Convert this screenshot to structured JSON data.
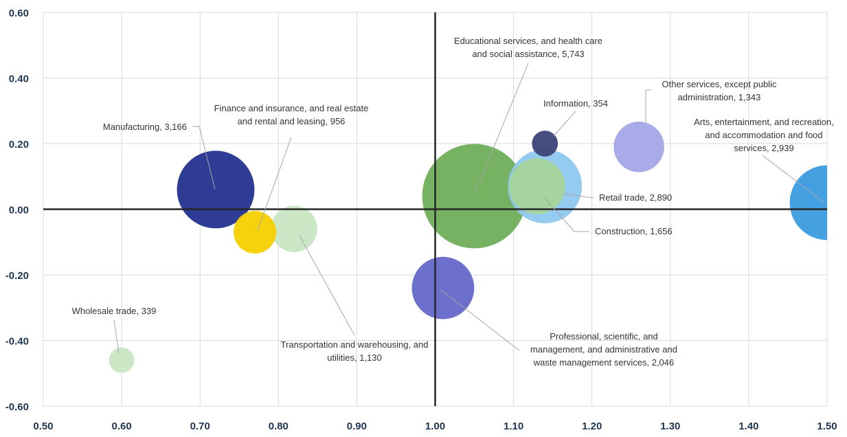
{
  "chart_data": {
    "type": "bubble",
    "title": "",
    "xlabel": "",
    "ylabel": "",
    "xlim": [
      0.5,
      1.5
    ],
    "ylim": [
      -0.6,
      0.6
    ],
    "x_ticks": [
      "0.50",
      "0.60",
      "0.70",
      "0.80",
      "0.90",
      "1.00",
      "1.10",
      "1.20",
      "1.30",
      "1.40",
      "1.50"
    ],
    "y_ticks": [
      "0.60",
      "0.40",
      "0.20",
      "0.00",
      "-0.20",
      "-0.40",
      "-0.60"
    ],
    "reference_lines": {
      "x": 1.0,
      "y": 0.0
    },
    "grid": true,
    "bubbles": [
      {
        "name": "Educational services, and health care and social assistance",
        "size": 5743,
        "x": 1.05,
        "y": 0.04,
        "color": "#70ad5a",
        "label_lines": [
          "Educational services, and health care",
          "and social assistance, 5,743"
        ]
      },
      {
        "name": "Manufacturing",
        "size": 3166,
        "x": 0.72,
        "y": 0.06,
        "color": "#24318f",
        "label_lines": [
          "Manufacturing, 3,166"
        ]
      },
      {
        "name": "Arts, entertainment, and recreation, and accommodation and food services",
        "size": 2939,
        "x": 1.5,
        "y": 0.02,
        "color": "#3b9be0",
        "label_lines": [
          "Arts, entertainment, and recreation,",
          "and accommodation and food",
          "services, 2,939"
        ]
      },
      {
        "name": "Retail trade",
        "size": 2890,
        "x": 1.14,
        "y": 0.07,
        "color": "#8ec8f0",
        "label_lines": [
          "Retail trade, 2,890"
        ]
      },
      {
        "name": "Professional, scientific, and management, and administrative and waste management services",
        "size": 2046,
        "x": 1.01,
        "y": -0.24,
        "color": "#6467c8",
        "label_lines": [
          "Professional, scientific, and",
          "management, and administrative and",
          "waste management services, 2,046"
        ]
      },
      {
        "name": "Construction",
        "size": 1656,
        "x": 1.13,
        "y": 0.07,
        "color": "#a6d49a",
        "label_lines": [
          "Construction, 1,656"
        ]
      },
      {
        "name": "Other services, except public administration",
        "size": 1343,
        "x": 1.26,
        "y": 0.19,
        "color": "#a3a7e6",
        "label_lines": [
          "Other services, except public",
          "administration, 1,343"
        ]
      },
      {
        "name": "Transportation and warehousing, and utilities",
        "size": 1130,
        "x": 0.82,
        "y": -0.06,
        "color": "#c8e6c2",
        "label_lines": [
          "Transportation and warehousing, and",
          "utilities, 1,130"
        ]
      },
      {
        "name": "Finance and insurance, and real estate and rental and leasing",
        "size": 956,
        "x": 0.77,
        "y": -0.07,
        "color": "#f5d000",
        "label_lines": [
          "Finance and insurance, and real estate",
          "and rental and leasing, 956"
        ]
      },
      {
        "name": "Information",
        "size": 354,
        "x": 1.14,
        "y": 0.2,
        "color": "#3c4277",
        "label_lines": [
          "Information, 354"
        ]
      },
      {
        "name": "Wholesale trade",
        "size": 339,
        "x": 0.6,
        "y": -0.46,
        "color": "#c8e6c2",
        "label_lines": [
          "Wholesale trade, 339"
        ]
      }
    ]
  }
}
